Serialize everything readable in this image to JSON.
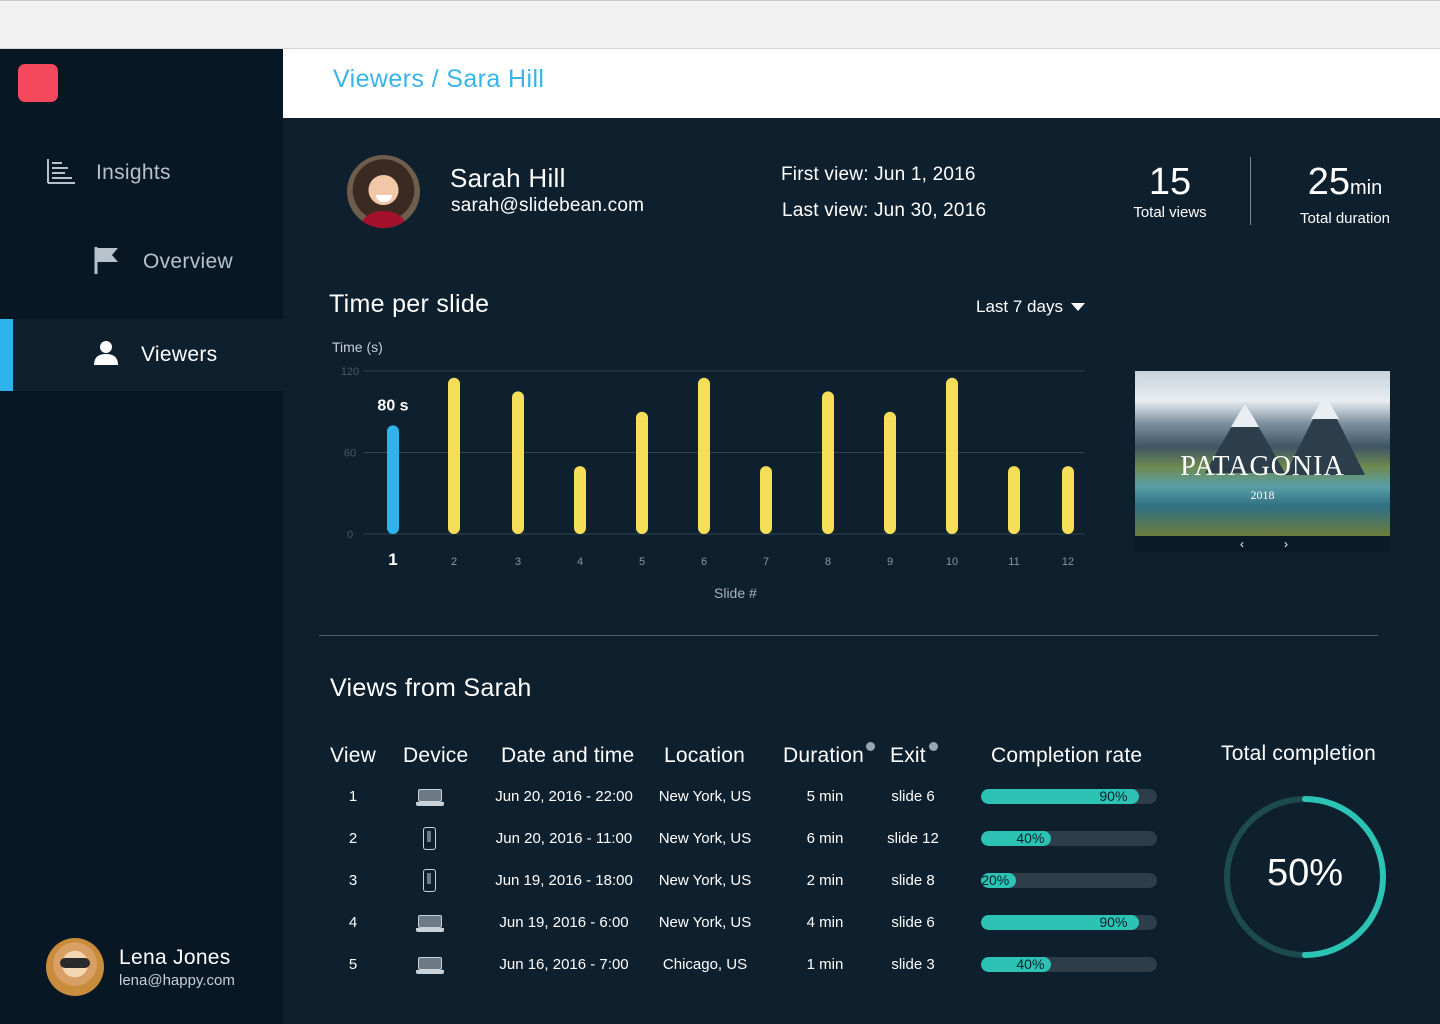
{
  "sidebar": {
    "items": [
      {
        "label": "Insights",
        "icon": "bar-chart-icon"
      },
      {
        "label": "Overview",
        "icon": "flag-icon"
      },
      {
        "label": "Viewers",
        "icon": "user-icon",
        "active": true
      }
    ],
    "user": {
      "name": "Lena Jones",
      "email": "lena@happy.com"
    }
  },
  "header": {
    "breadcrumb": "Viewers / Sara Hill"
  },
  "profile": {
    "name": "Sarah Hill",
    "email": "sarah@slidebean.com",
    "first_view": "First view: Jun 1, 2016",
    "last_view": "Last view: Jun 30, 2016"
  },
  "stats": {
    "views_value": "15",
    "views_label": "Total views",
    "duration_value": "25",
    "duration_unit": "min",
    "duration_label": "Total duration"
  },
  "time_chart": {
    "title": "Time per slide",
    "range": "Last 7 days",
    "ylabel": "Time (s)",
    "xlabel": "Slide #",
    "highlight_label": "80 s"
  },
  "chart_data": {
    "type": "bar",
    "title": "Time per slide",
    "xlabel": "Slide #",
    "ylabel": "Time (s)",
    "categories": [
      "1",
      "2",
      "3",
      "4",
      "5",
      "6",
      "7",
      "8",
      "9",
      "10",
      "11",
      "12"
    ],
    "values": [
      80,
      115,
      105,
      50,
      90,
      115,
      50,
      105,
      90,
      115,
      50,
      50
    ],
    "yticks": [
      0,
      60,
      120
    ],
    "ylim": [
      0,
      120
    ],
    "highlight_index": 0,
    "colors": {
      "highlight": "#2fb3ec",
      "default": "#f6de59",
      "grid": "#33434f"
    }
  },
  "slide_preview": {
    "title": "PATAGONIA",
    "year": "2018",
    "prev": "‹",
    "next": "›"
  },
  "views": {
    "title": "Views from Sarah",
    "columns": [
      "View",
      "Device",
      "Date and time",
      "Location",
      "Duration",
      "Exit",
      "Completion rate"
    ],
    "rows": [
      {
        "view": "1",
        "device": "laptop-icon",
        "datetime": "Jun 20, 2016 - 22:00",
        "location": "New York, US",
        "duration": "5 min",
        "exit": "slide 6",
        "completion": 90,
        "completion_label": "90%"
      },
      {
        "view": "2",
        "device": "phone-icon",
        "datetime": "Jun 20, 2016 - 11:00",
        "location": "New York, US",
        "duration": "6 min",
        "exit": "slide 12",
        "completion": 40,
        "completion_label": "40%"
      },
      {
        "view": "3",
        "device": "phone-icon",
        "datetime": "Jun 19, 2016 - 18:00",
        "location": "New York, US",
        "duration": "2 min",
        "exit": "slide 8",
        "completion": 20,
        "completion_label": "20%"
      },
      {
        "view": "4",
        "device": "laptop-icon",
        "datetime": "Jun 19, 2016 - 6:00",
        "location": "New York, US",
        "duration": "4 min",
        "exit": "slide 6",
        "completion": 90,
        "completion_label": "90%"
      },
      {
        "view": "5",
        "device": "laptop-icon",
        "datetime": "Jun 16, 2016 - 7:00",
        "location": "Chicago, US",
        "duration": "1 min",
        "exit": "slide 3",
        "completion": 40,
        "completion_label": "40%"
      }
    ]
  },
  "total_completion": {
    "title": "Total completion",
    "value": 50,
    "label": "50%",
    "colors": {
      "progress": "#2cc3b5",
      "track": "#1d4a4f"
    }
  }
}
